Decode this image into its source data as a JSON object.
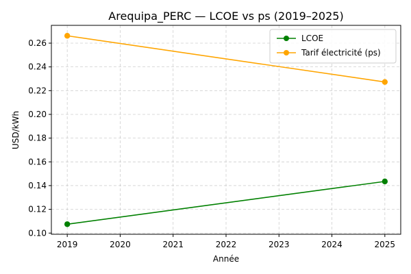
{
  "chart_data": {
    "type": "line",
    "title": "Arequipa_PERC — LCOE vs ps (2019–2025)",
    "xlabel": "Année",
    "ylabel": "USD/kWh",
    "x_ticks": [
      "2019",
      "2020",
      "2021",
      "2022",
      "2023",
      "2024",
      "2025"
    ],
    "y_ticks": [
      "0.10",
      "0.12",
      "0.14",
      "0.16",
      "0.18",
      "0.20",
      "0.22",
      "0.24",
      "0.26"
    ],
    "xlim": [
      2018.7,
      2025.3
    ],
    "ylim": [
      0.099,
      0.275
    ],
    "grid": true,
    "legend_position": "upper right",
    "series": [
      {
        "name": "LCOE",
        "color": "#008000",
        "marker": "circle",
        "x": [
          2019,
          2025
        ],
        "y": [
          0.1075,
          0.1435
        ]
      },
      {
        "name": "Tarif électricité (ps)",
        "color": "#FFA500",
        "marker": "circle",
        "x": [
          2019,
          2025
        ],
        "y": [
          0.2662,
          0.2273
        ]
      }
    ]
  }
}
